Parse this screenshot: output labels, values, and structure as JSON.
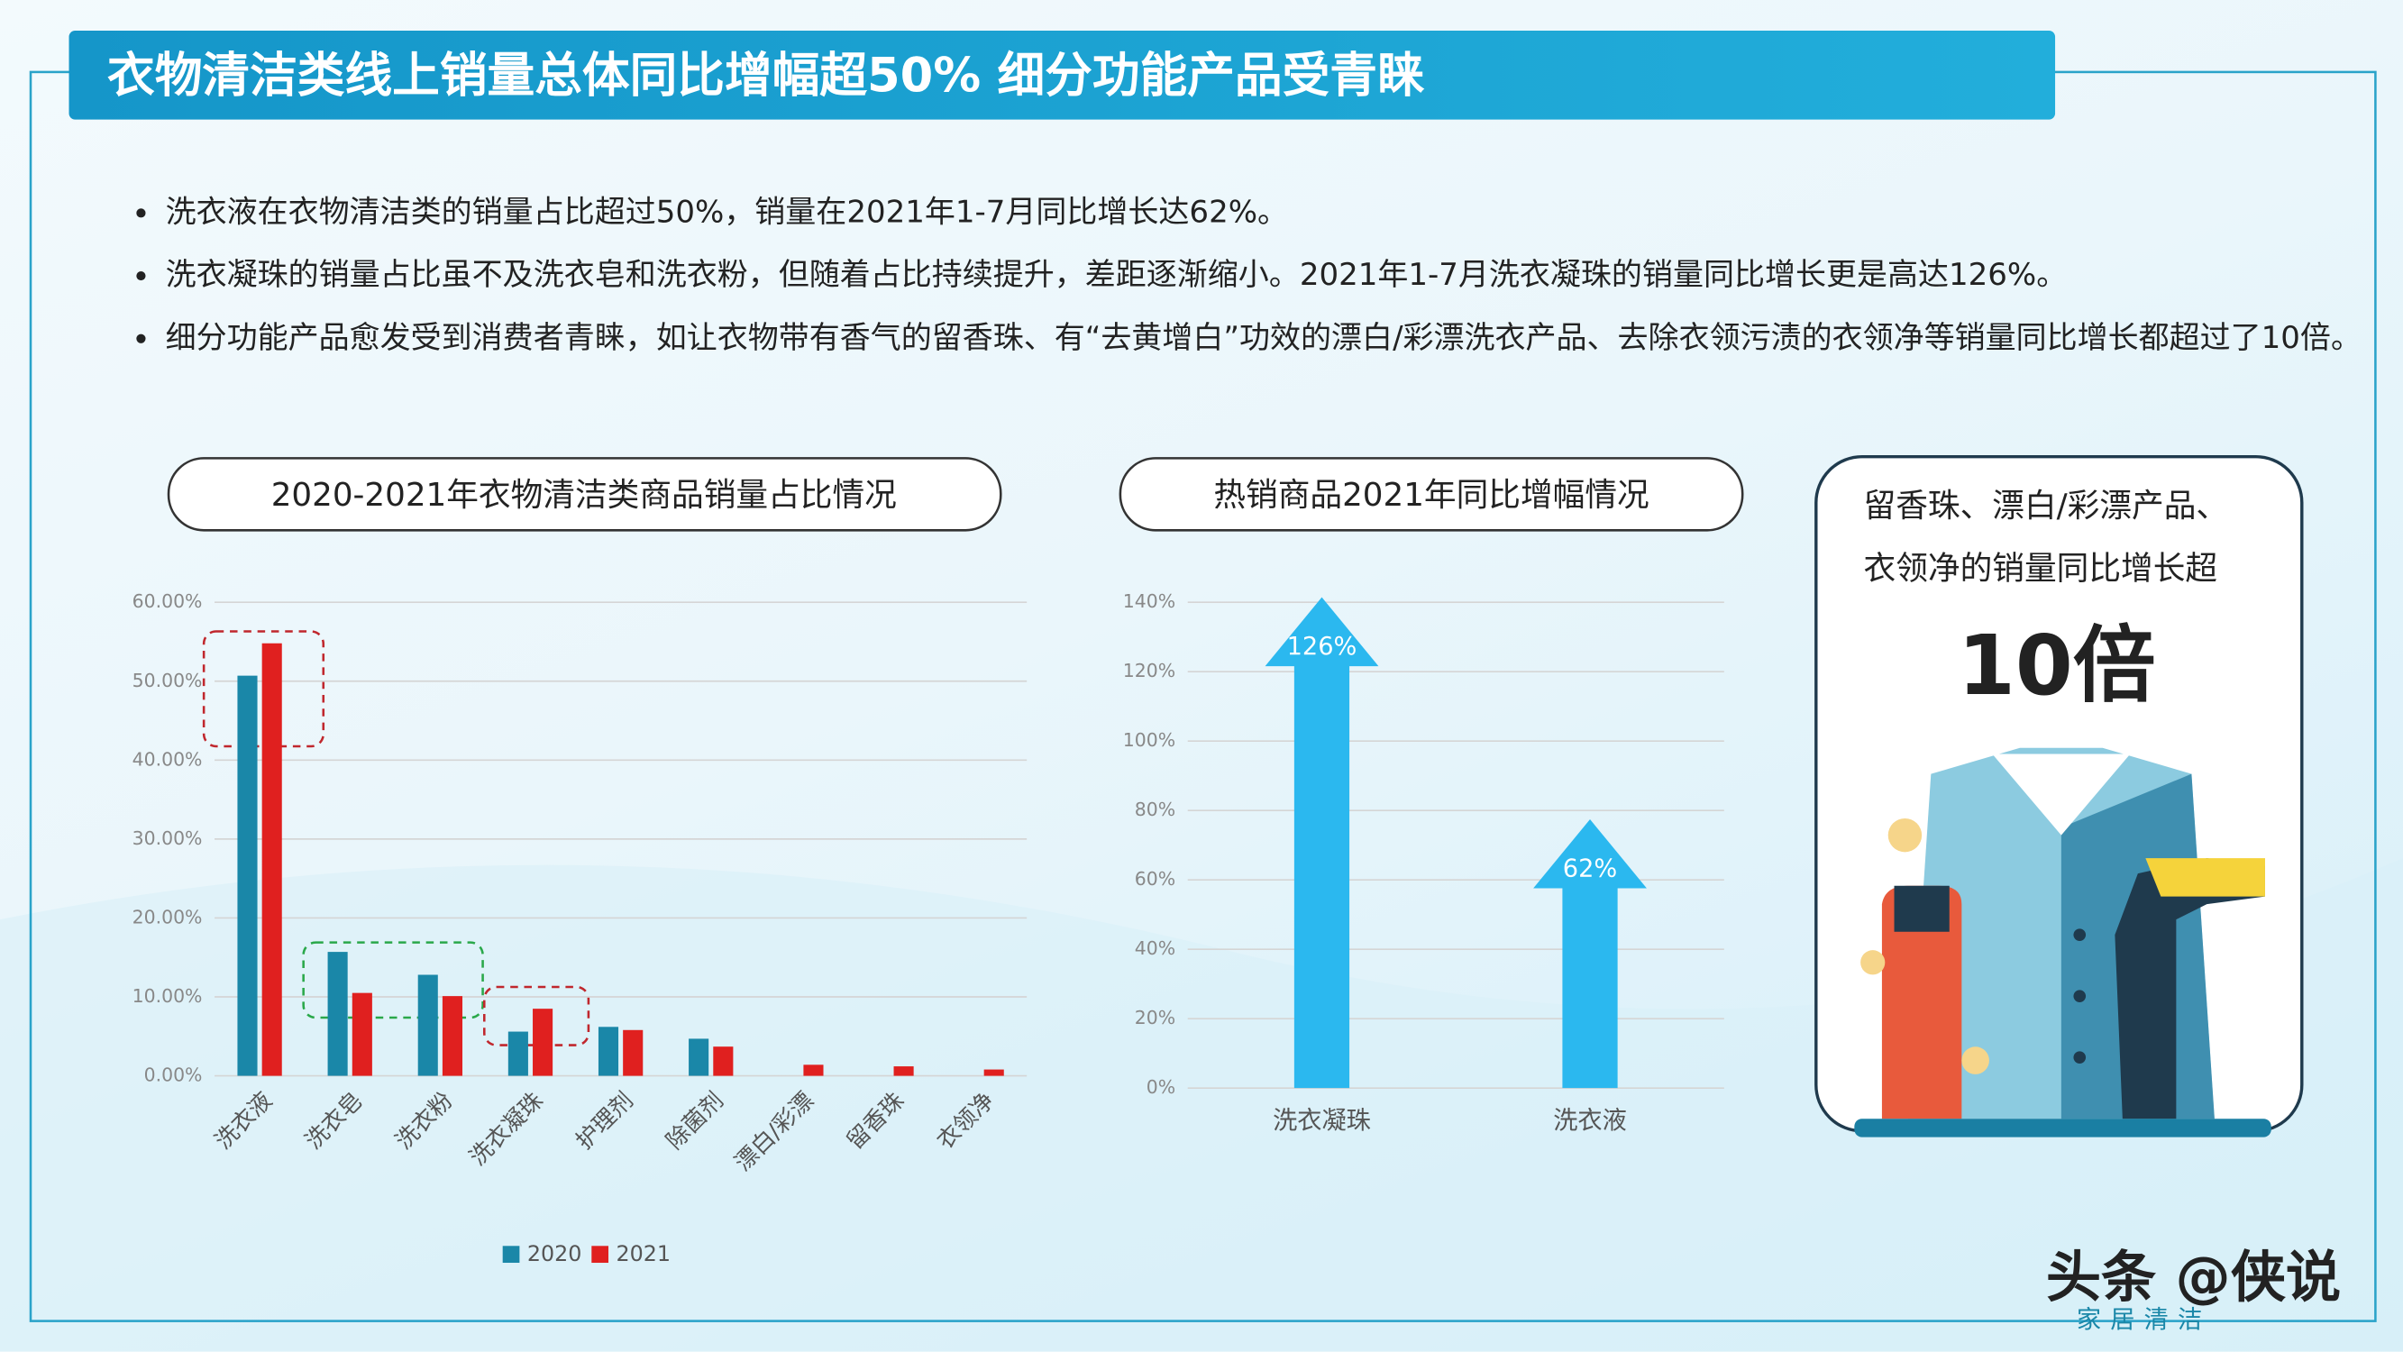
{
  "header": {
    "title": "衣物清洁类线上销量总体同比增幅超50% 细分功能产品受青睐"
  },
  "bullets": [
    "洗衣液在衣物清洁类的销量占比超过50%，销量在2021年1-7月同比增长达62%。",
    "洗衣凝珠的销量占比虽不及洗衣皂和洗衣粉，但随着占比持续提升，差距逐渐缩小。2021年1-7月洗衣凝珠的销量同比增长更是高达126%。",
    "细分功能产品愈发受到消费者青睐，如让衣物带有香气的留香珠、有“去黄增白”功效的漂白/彩漂洗衣产品、去除衣领污渍的衣领净等销量同比增长都超过了10倍。"
  ],
  "chart_data": [
    {
      "type": "bar",
      "title": "2020-2021年衣物清洁类商品销量占比情况",
      "categories": [
        "洗衣液",
        "洗衣皂",
        "洗衣粉",
        "洗衣凝珠",
        "护理剂",
        "除菌剂",
        "漂白/彩漂",
        "留香珠",
        "衣领净"
      ],
      "series": [
        {
          "name": "2020",
          "color": "#1a87a8",
          "values": [
            50.7,
            15.7,
            12.8,
            5.6,
            6.2,
            4.7,
            0,
            0,
            0
          ]
        },
        {
          "name": "2021",
          "color": "#e0201f",
          "values": [
            54.8,
            10.5,
            10.1,
            8.5,
            5.8,
            3.7,
            1.4,
            1.2,
            0.8
          ]
        }
      ],
      "ylim": [
        0,
        60
      ],
      "yticks": [
        {
          "value": 0,
          "label": "0.00%"
        },
        {
          "value": 10,
          "label": "10.00%"
        },
        {
          "value": 20,
          "label": "20.00%"
        },
        {
          "value": 30,
          "label": "30.00%"
        },
        {
          "value": 40,
          "label": "40.00%"
        },
        {
          "value": 50,
          "label": "50.00%"
        },
        {
          "value": 60,
          "label": "60.00%"
        }
      ],
      "grid": true,
      "legend": "bottom"
    },
    {
      "type": "arrow",
      "title": "热销商品2021年同比增幅情况",
      "categories": [
        "洗衣凝珠",
        "洗衣液"
      ],
      "values": [
        126,
        62
      ],
      "value_labels": [
        "126%",
        "62%"
      ],
      "color": "#2bb8ef",
      "ylim": [
        0,
        140
      ],
      "yticks": [
        {
          "value": 0,
          "label": "0%"
        },
        {
          "value": 20,
          "label": "20%"
        },
        {
          "value": 40,
          "label": "40%"
        },
        {
          "value": 60,
          "label": "60%"
        },
        {
          "value": 80,
          "label": "80%"
        },
        {
          "value": 100,
          "label": "100%"
        },
        {
          "value": 120,
          "label": "120%"
        },
        {
          "value": 140,
          "label": "140%"
        }
      ],
      "grid": true
    }
  ],
  "callout": {
    "lines": [
      "留香珠、漂白/彩漂产品、",
      "衣领净的销量同比增长超"
    ],
    "highlight": "10倍"
  },
  "watermark": {
    "brand": "头条 @侠说",
    "tagline": "家居清洁"
  }
}
